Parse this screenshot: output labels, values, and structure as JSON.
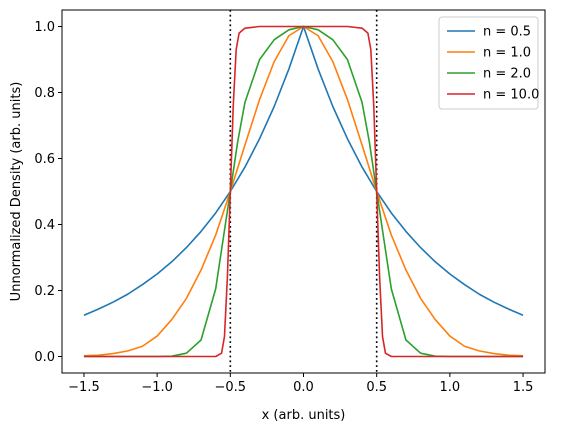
{
  "chart_data": {
    "type": "line",
    "title": "",
    "xlabel": "x (arb. units)",
    "ylabel": "Unnormalized Density (arb. units)",
    "xlim": [
      -1.65,
      1.65
    ],
    "ylim": [
      -0.05,
      1.05
    ],
    "x_ticks": [
      -1.5,
      -1.0,
      -0.5,
      0.0,
      0.5,
      1.0,
      1.5
    ],
    "x_tick_labels": [
      "−1.5",
      "−1.0",
      "−0.5",
      "0.0",
      "0.5",
      "1.0",
      "1.5"
    ],
    "y_ticks": [
      0.0,
      0.2,
      0.4,
      0.6,
      0.8,
      1.0
    ],
    "y_tick_labels": [
      "0.0",
      "0.2",
      "0.4",
      "0.6",
      "0.8",
      "1.0"
    ],
    "grid": false,
    "legend_position": "top-right",
    "vertical_lines": [
      {
        "x": -0.5,
        "style": "dotted",
        "color": "#000000"
      },
      {
        "x": 0.5,
        "style": "dotted",
        "color": "#000000"
      }
    ],
    "series": [
      {
        "name": "n = 0.5",
        "color": "#1f77b4",
        "x": [
          -1.5,
          -1.4,
          -1.3,
          -1.2,
          -1.1,
          -1.0,
          -0.9,
          -0.8,
          -0.7,
          -0.6,
          -0.5,
          -0.4,
          -0.3,
          -0.2,
          -0.1,
          0.0,
          0.1,
          0.2,
          0.3,
          0.4,
          0.5,
          0.6,
          0.7,
          0.8,
          0.9,
          1.0,
          1.1,
          1.2,
          1.3,
          1.4,
          1.5
        ],
        "y": [
          0.125,
          0.144,
          0.165,
          0.189,
          0.218,
          0.25,
          0.287,
          0.33,
          0.379,
          0.435,
          0.5,
          0.574,
          0.66,
          0.758,
          0.871,
          1.0,
          0.871,
          0.758,
          0.66,
          0.574,
          0.5,
          0.435,
          0.379,
          0.33,
          0.287,
          0.25,
          0.218,
          0.189,
          0.165,
          0.144,
          0.125
        ]
      },
      {
        "name": "n = 1.0",
        "color": "#ff7f0e",
        "x": [
          -1.5,
          -1.4,
          -1.3,
          -1.2,
          -1.1,
          -1.0,
          -0.9,
          -0.8,
          -0.7,
          -0.6,
          -0.5,
          -0.4,
          -0.3,
          -0.2,
          -0.1,
          0.0,
          0.1,
          0.2,
          0.3,
          0.4,
          0.5,
          0.6,
          0.7,
          0.8,
          0.9,
          1.0,
          1.1,
          1.2,
          1.3,
          1.4,
          1.5
        ],
        "y": [
          0.002,
          0.004,
          0.009,
          0.017,
          0.031,
          0.062,
          0.112,
          0.176,
          0.262,
          0.368,
          0.5,
          0.641,
          0.779,
          0.894,
          0.972,
          1.0,
          0.972,
          0.894,
          0.779,
          0.641,
          0.5,
          0.368,
          0.262,
          0.176,
          0.112,
          0.062,
          0.031,
          0.017,
          0.009,
          0.004,
          0.002
        ]
      },
      {
        "name": "n = 2.0",
        "color": "#2ca02c",
        "x": [
          -1.5,
          -1.4,
          -1.3,
          -1.2,
          -1.1,
          -1.0,
          -0.9,
          -0.8,
          -0.7,
          -0.6,
          -0.5,
          -0.45,
          -0.4,
          -0.3,
          -0.2,
          -0.1,
          0.0,
          0.1,
          0.2,
          0.3,
          0.4,
          0.45,
          0.5,
          0.6,
          0.7,
          0.8,
          0.9,
          1.0,
          1.1,
          1.2,
          1.3,
          1.4,
          1.5
        ],
        "y": [
          0.0,
          0.0,
          0.0,
          0.0,
          0.0,
          0.0,
          0.001,
          0.01,
          0.05,
          0.205,
          0.5,
          0.65,
          0.77,
          0.9,
          0.96,
          0.99,
          1.0,
          0.99,
          0.96,
          0.9,
          0.77,
          0.65,
          0.5,
          0.205,
          0.05,
          0.01,
          0.001,
          0.0,
          0.0,
          0.0,
          0.0,
          0.0,
          0.0
        ]
      },
      {
        "name": "n = 10.0",
        "color": "#d62728",
        "x": [
          -1.5,
          -1.0,
          -0.6,
          -0.56,
          -0.54,
          -0.52,
          -0.5,
          -0.48,
          -0.46,
          -0.44,
          -0.4,
          -0.3,
          0.0,
          0.3,
          0.4,
          0.44,
          0.46,
          0.48,
          0.5,
          0.52,
          0.54,
          0.56,
          0.6,
          1.0,
          1.5
        ],
        "y": [
          0.0,
          0.0,
          0.0,
          0.01,
          0.06,
          0.24,
          0.5,
          0.76,
          0.93,
          0.98,
          0.995,
          1.0,
          1.0,
          1.0,
          0.995,
          0.98,
          0.93,
          0.76,
          0.5,
          0.24,
          0.06,
          0.01,
          0.0,
          0.0,
          0.0
        ]
      }
    ]
  }
}
